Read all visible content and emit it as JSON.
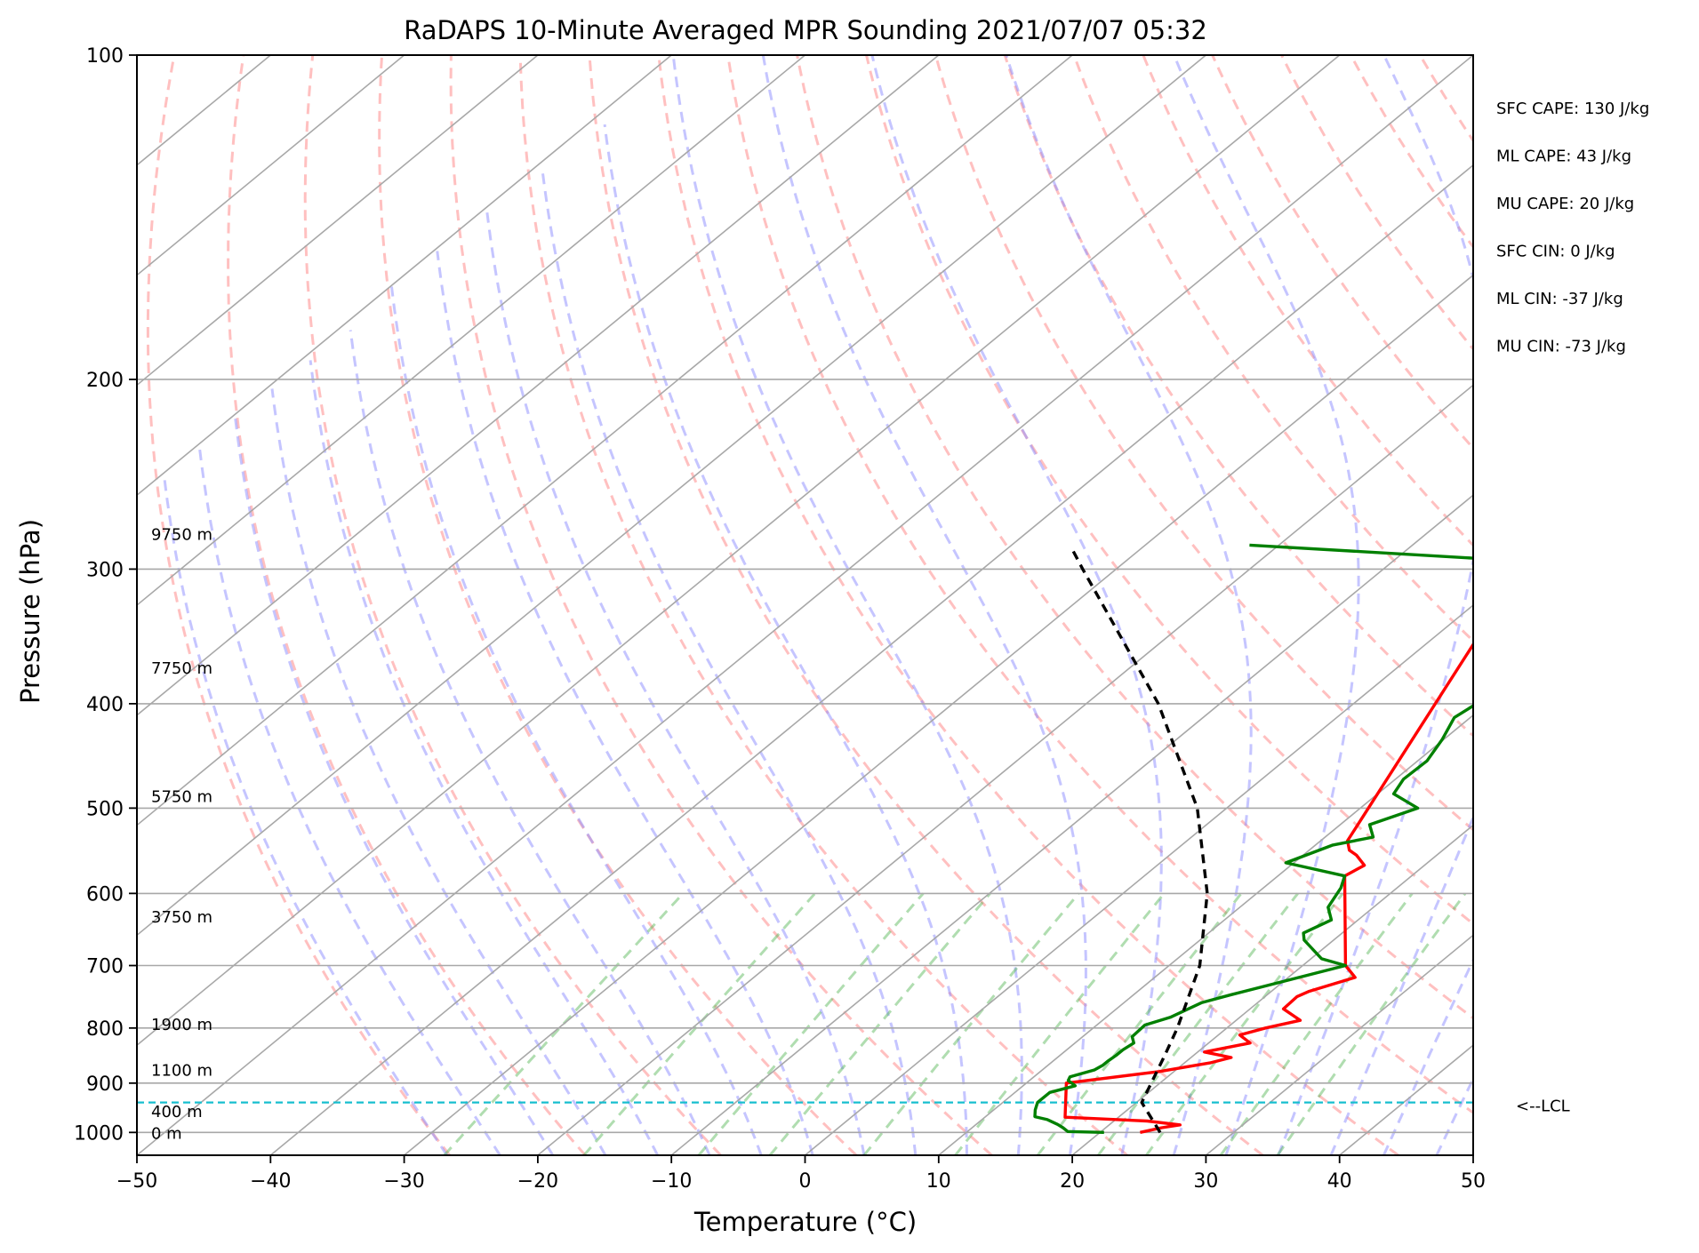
{
  "chart_data": {
    "type": "line",
    "title": "RaDAPS 10-Minute Averaged MPR Sounding 2021/07/07 05:32",
    "xlabel": "Temperature (°C)",
    "ylabel": "Pressure (hPa)",
    "xlim": [
      -50,
      50
    ],
    "ylim": [
      1050,
      100
    ],
    "y_scale": "log",
    "skew": "skew-T log-p",
    "x_ticks": [
      "−50",
      "−40",
      "−30",
      "−20",
      "−10",
      "0",
      "10",
      "20",
      "30",
      "40",
      "50"
    ],
    "y_ticks": [
      {
        "p": 100,
        "label": "100"
      },
      {
        "p": 200,
        "label": "200"
      },
      {
        "p": 300,
        "label": "300"
      },
      {
        "p": 400,
        "label": "400"
      },
      {
        "p": 500,
        "label": "500"
      },
      {
        "p": 600,
        "label": "600"
      },
      {
        "p": 700,
        "label": "700"
      },
      {
        "p": 800,
        "label": "800"
      },
      {
        "p": 900,
        "label": "900"
      },
      {
        "p": 1000,
        "label": "1000"
      }
    ],
    "height_labels": [
      {
        "p": 278,
        "label": "9750 m"
      },
      {
        "p": 370,
        "label": "7750 m"
      },
      {
        "p": 487,
        "label": "5750 m"
      },
      {
        "p": 630,
        "label": "3750 m"
      },
      {
        "p": 793,
        "label": "1900 m"
      },
      {
        "p": 874,
        "label": "1100 m"
      },
      {
        "p": 955,
        "label": "400 m"
      },
      {
        "p": 1000,
        "label": "0 m"
      }
    ],
    "lcl": {
      "p": 938,
      "label": "<--LCL"
    },
    "indices": [
      "SFC CAPE: 130 J/kg",
      "ML CAPE: 43 J/kg",
      "MU CAPE: 20 J/kg",
      "SFC CIN: 0 J/kg",
      "ML CIN: -37 J/kg",
      "MU CIN: -73 J/kg"
    ],
    "series": [
      {
        "color": "#ff0000",
        "points": [
          [
            1000,
            23.0
          ],
          [
            990,
            24.2
          ],
          [
            984,
            25.3
          ],
          [
            976,
            22.5
          ],
          [
            968,
            16.0
          ],
          [
            900,
            13.0
          ],
          [
            878,
            18.9
          ],
          [
            862,
            21.9
          ],
          [
            852,
            23.0
          ],
          [
            842,
            20.5
          ],
          [
            826,
            23.1
          ],
          [
            812,
            21.6
          ],
          [
            800,
            22.9
          ],
          [
            787,
            24.8
          ],
          [
            768,
            22.5
          ],
          [
            748,
            22.4
          ],
          [
            740,
            22.8
          ],
          [
            718,
            25.0
          ],
          [
            700,
            23.2
          ],
          [
            578,
            15.0
          ],
          [
            565,
            15.5
          ],
          [
            553,
            14.0
          ],
          [
            547,
            13.0
          ],
          [
            536,
            12.0
          ],
          [
            295,
            0.0
          ],
          [
            285,
            -1.5
          ]
        ]
      },
      {
        "color": "#008000",
        "points": [
          [
            1000,
            20.3
          ],
          [
            998,
            17.5
          ],
          [
            990,
            16.8
          ],
          [
            983,
            16.1
          ],
          [
            973,
            14.9
          ],
          [
            967,
            13.7
          ],
          [
            953,
            13.1
          ],
          [
            938,
            12.6
          ],
          [
            918,
            12.6
          ],
          [
            905,
            13.9
          ],
          [
            900,
            13.4
          ],
          [
            895,
            12.9
          ],
          [
            888,
            12.7
          ],
          [
            875,
            13.9
          ],
          [
            866,
            14.1
          ],
          [
            859,
            14.1
          ],
          [
            848,
            14.2
          ],
          [
            838,
            14.2
          ],
          [
            826,
            14.4
          ],
          [
            815,
            13.7
          ],
          [
            795,
            13.6
          ],
          [
            782,
            14.8
          ],
          [
            758,
            15.8
          ],
          [
            745,
            17.3
          ],
          [
            700,
            23.2
          ],
          [
            690,
            20.8
          ],
          [
            663,
            17.8
          ],
          [
            653,
            17.1
          ],
          [
            635,
            18.0
          ],
          [
            618,
            16.6
          ],
          [
            593,
            15.8
          ],
          [
            578,
            15.0
          ],
          [
            562,
            9.4
          ],
          [
            541,
            11.3
          ],
          [
            532,
            13.6
          ],
          [
            518,
            12.2
          ],
          [
            500,
            14.3
          ],
          [
            485,
            11.2
          ],
          [
            470,
            10.6
          ],
          [
            452,
            10.7
          ],
          [
            432,
            9.9
          ],
          [
            412,
            8.8
          ],
          [
            400,
            9.2
          ],
          [
            392,
            10.9
          ],
          [
            380,
            10.1
          ],
          [
            365,
            8.8
          ],
          [
            345,
            6.5
          ],
          [
            335,
            6.6
          ],
          [
            330,
            6.8
          ],
          [
            312,
            5.8
          ],
          [
            300,
            4.6
          ],
          [
            295,
            0.0
          ],
          [
            285,
            -22.2
          ]
        ]
      },
      {
        "color": "#000000",
        "dashed": true,
        "points": [
          [
            1000,
            24.5
          ],
          [
            938,
            20.4
          ],
          [
            850,
            17.9
          ],
          [
            800,
            16.3
          ],
          [
            700,
            12.3
          ],
          [
            600,
            6.3
          ],
          [
            500,
            -2.2
          ],
          [
            400,
            -14.6
          ],
          [
            300,
            -32.5
          ],
          [
            287,
            -35.2
          ]
        ]
      }
    ]
  }
}
